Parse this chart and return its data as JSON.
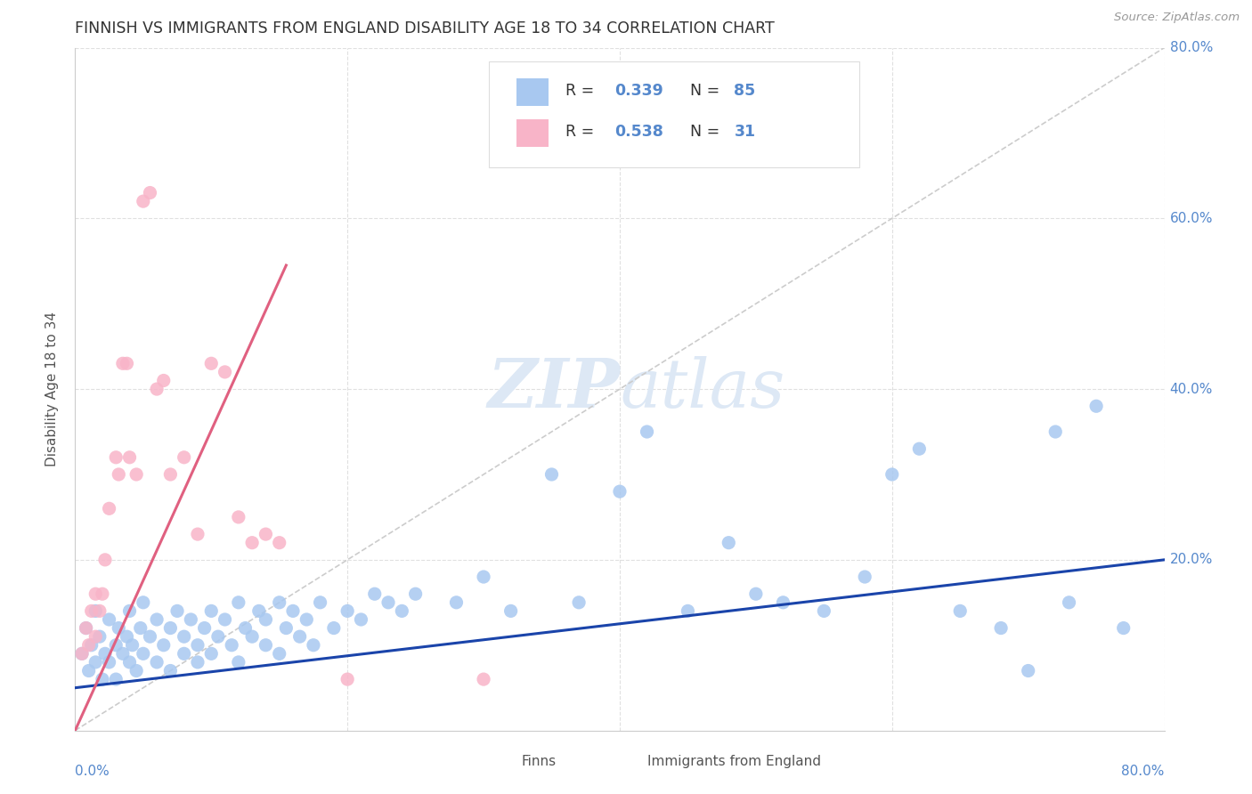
{
  "title": "FINNISH VS IMMIGRANTS FROM ENGLAND DISABILITY AGE 18 TO 34 CORRELATION CHART",
  "source": "Source: ZipAtlas.com",
  "ylabel": "Disability Age 18 to 34",
  "xlim": [
    0.0,
    0.8
  ],
  "ylim": [
    0.0,
    0.8
  ],
  "finns_color": "#a8c8f0",
  "england_color": "#f8b4c8",
  "finns_line_color": "#1a44aa",
  "england_line_color": "#e06080",
  "diagonal_color": "#cccccc",
  "watermark_color": "#dde8f5",
  "grid_color": "#e0e0e0",
  "tick_label_color": "#5588cc",
  "finns_trend_x0": 0.0,
  "finns_trend_y0": 0.05,
  "finns_trend_x1": 0.8,
  "finns_trend_y1": 0.2,
  "england_trend_x0": 0.0,
  "england_trend_y0": 0.0,
  "england_trend_x1": 0.155,
  "england_trend_y1": 0.545,
  "finns_x": [
    0.005,
    0.008,
    0.01,
    0.012,
    0.015,
    0.015,
    0.018,
    0.02,
    0.022,
    0.025,
    0.025,
    0.03,
    0.03,
    0.032,
    0.035,
    0.038,
    0.04,
    0.04,
    0.042,
    0.045,
    0.048,
    0.05,
    0.05,
    0.055,
    0.06,
    0.06,
    0.065,
    0.07,
    0.07,
    0.075,
    0.08,
    0.08,
    0.085,
    0.09,
    0.09,
    0.095,
    0.1,
    0.1,
    0.105,
    0.11,
    0.115,
    0.12,
    0.12,
    0.125,
    0.13,
    0.135,
    0.14,
    0.14,
    0.15,
    0.15,
    0.155,
    0.16,
    0.165,
    0.17,
    0.175,
    0.18,
    0.19,
    0.2,
    0.21,
    0.22,
    0.23,
    0.24,
    0.25,
    0.28,
    0.3,
    0.32,
    0.35,
    0.37,
    0.4,
    0.42,
    0.45,
    0.48,
    0.5,
    0.52,
    0.55,
    0.58,
    0.6,
    0.62,
    0.65,
    0.68,
    0.7,
    0.72,
    0.73,
    0.75,
    0.77
  ],
  "finns_y": [
    0.09,
    0.12,
    0.07,
    0.1,
    0.08,
    0.14,
    0.11,
    0.06,
    0.09,
    0.08,
    0.13,
    0.1,
    0.06,
    0.12,
    0.09,
    0.11,
    0.08,
    0.14,
    0.1,
    0.07,
    0.12,
    0.09,
    0.15,
    0.11,
    0.13,
    0.08,
    0.1,
    0.12,
    0.07,
    0.14,
    0.11,
    0.09,
    0.13,
    0.1,
    0.08,
    0.12,
    0.14,
    0.09,
    0.11,
    0.13,
    0.1,
    0.15,
    0.08,
    0.12,
    0.11,
    0.14,
    0.1,
    0.13,
    0.15,
    0.09,
    0.12,
    0.14,
    0.11,
    0.13,
    0.1,
    0.15,
    0.12,
    0.14,
    0.13,
    0.16,
    0.15,
    0.14,
    0.16,
    0.15,
    0.18,
    0.14,
    0.3,
    0.15,
    0.28,
    0.35,
    0.14,
    0.22,
    0.16,
    0.15,
    0.14,
    0.18,
    0.3,
    0.33,
    0.14,
    0.12,
    0.07,
    0.35,
    0.15,
    0.38,
    0.12
  ],
  "england_x": [
    0.005,
    0.008,
    0.01,
    0.012,
    0.015,
    0.015,
    0.018,
    0.02,
    0.022,
    0.025,
    0.03,
    0.032,
    0.035,
    0.038,
    0.04,
    0.045,
    0.05,
    0.055,
    0.06,
    0.065,
    0.07,
    0.08,
    0.09,
    0.1,
    0.11,
    0.12,
    0.13,
    0.14,
    0.15,
    0.2,
    0.3
  ],
  "england_y": [
    0.09,
    0.12,
    0.1,
    0.14,
    0.11,
    0.16,
    0.14,
    0.16,
    0.2,
    0.26,
    0.32,
    0.3,
    0.43,
    0.43,
    0.32,
    0.3,
    0.62,
    0.63,
    0.4,
    0.41,
    0.3,
    0.32,
    0.23,
    0.43,
    0.42,
    0.25,
    0.22,
    0.23,
    0.22,
    0.06,
    0.06
  ]
}
